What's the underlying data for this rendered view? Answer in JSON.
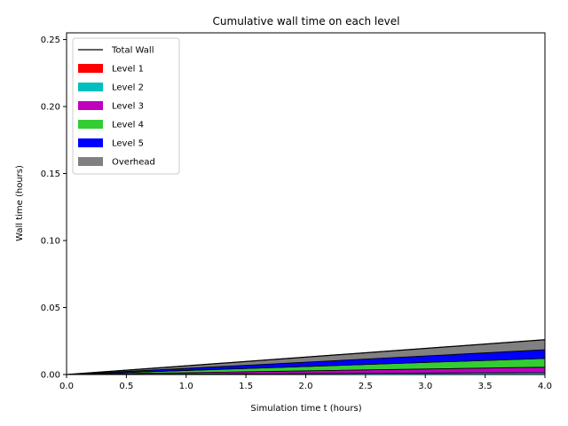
{
  "chart_data": {
    "type": "area",
    "title": "Cumulative wall time on each level",
    "xlabel": "Simulation time t (hours)",
    "ylabel": "Wall time (hours)",
    "xlim": [
      0.0,
      4.0
    ],
    "ylim": [
      0.0,
      0.255
    ],
    "xticks": [
      "0.0",
      "0.5",
      "1.0",
      "1.5",
      "2.0",
      "2.5",
      "3.0",
      "3.5",
      "4.0"
    ],
    "yticks": [
      "0.00",
      "0.05",
      "0.10",
      "0.15",
      "0.20",
      "0.25"
    ],
    "x": [
      0.0,
      4.0
    ],
    "stacked": true,
    "series": [
      {
        "name": "Level 1",
        "color": "#ff0000",
        "values": [
          0.0,
          0.0001
        ]
      },
      {
        "name": "Level 2",
        "color": "#00bfbf",
        "values": [
          0.0,
          0.0014
        ]
      },
      {
        "name": "Level 3",
        "color": "#bf00bf",
        "values": [
          0.0,
          0.004
        ]
      },
      {
        "name": "Level 4",
        "color": "#33cc33",
        "values": [
          0.0,
          0.0065
        ]
      },
      {
        "name": "Level 5",
        "color": "#0000ff",
        "values": [
          0.0,
          0.0065
        ]
      },
      {
        "name": "Overhead",
        "color": "#808080",
        "values": [
          0.0,
          0.0075
        ]
      }
    ],
    "total": {
      "name": "Total Wall",
      "color": "#000000",
      "values": [
        0.0,
        0.026
      ]
    },
    "legend": {
      "placement": "top-left",
      "entries": [
        "Total Wall",
        "Level 1",
        "Level 2",
        "Level 3",
        "Level 4",
        "Level 5",
        "Overhead"
      ]
    }
  }
}
